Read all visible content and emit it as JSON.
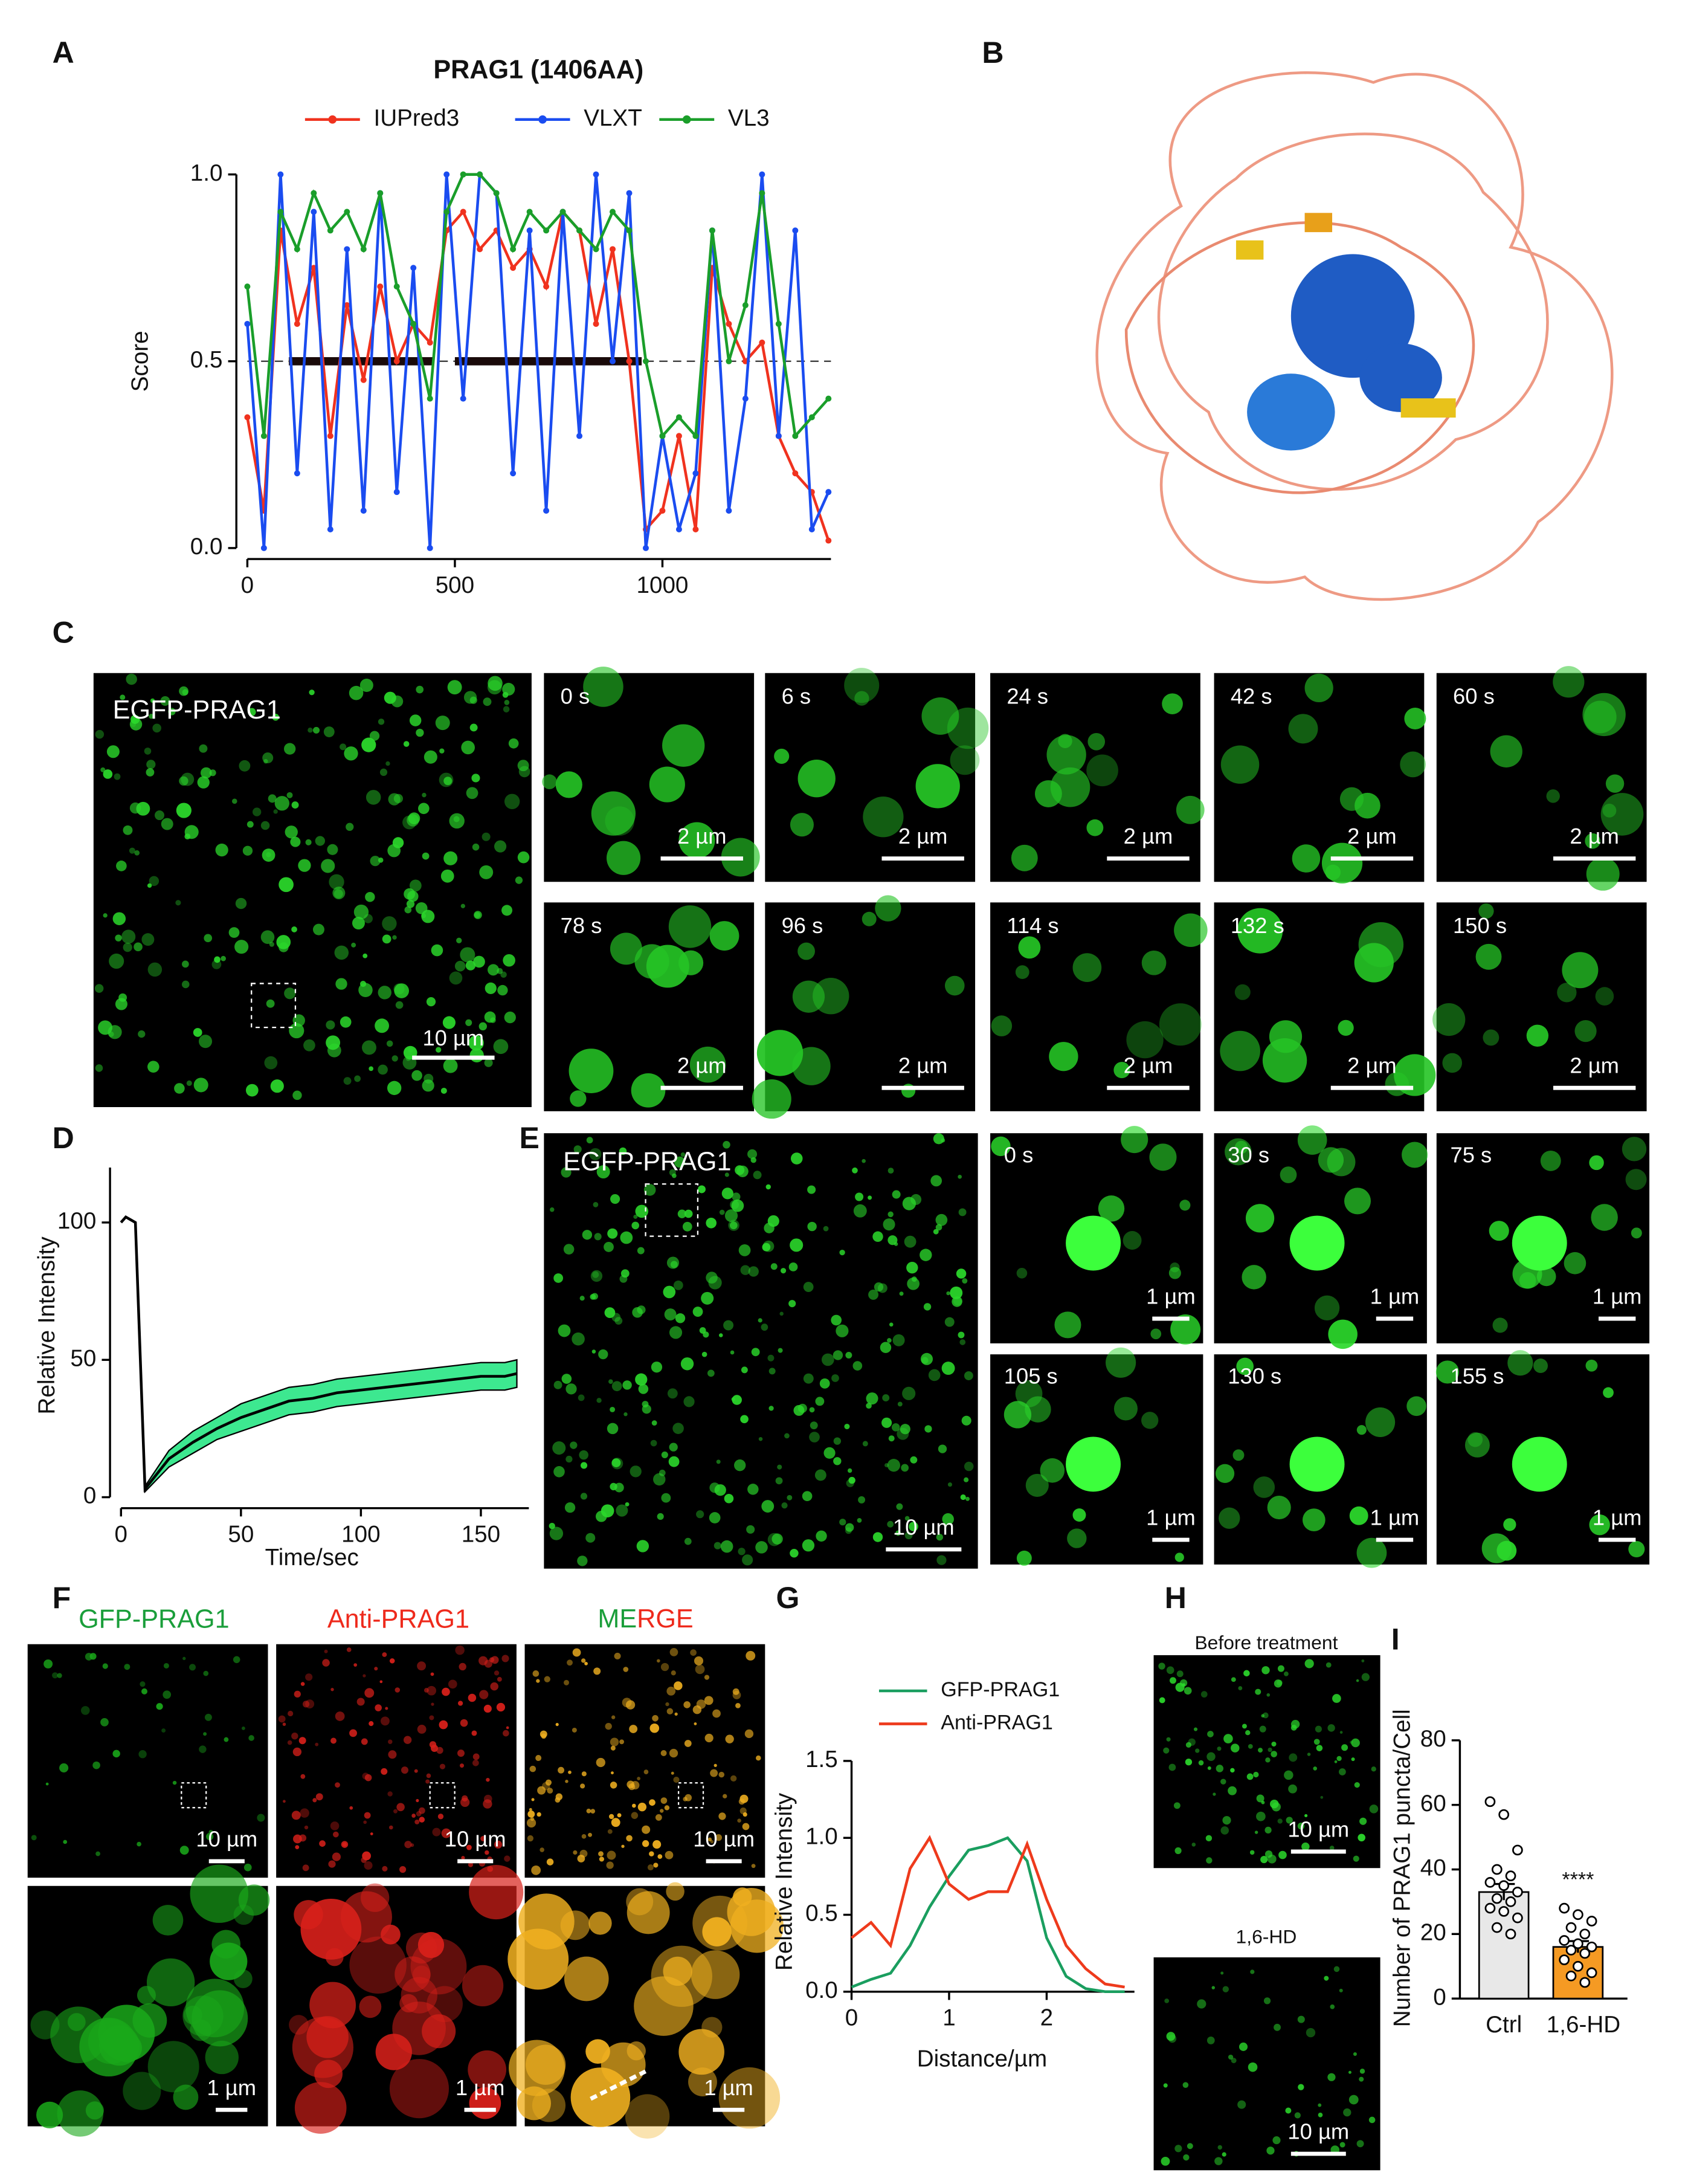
{
  "chart_data": [
    {
      "type": "line",
      "title": "PRAG1 (1406AA)",
      "ylabel": "Score",
      "markers": true,
      "x": [
        0,
        40,
        80,
        120,
        160,
        200,
        240,
        280,
        320,
        360,
        400,
        440,
        480,
        520,
        560,
        600,
        640,
        680,
        720,
        760,
        800,
        840,
        880,
        920,
        960,
        1000,
        1040,
        1080,
        1120,
        1160,
        1200,
        1240,
        1280,
        1320,
        1360,
        1400
      ],
      "series": [
        {
          "name": "IUPred3",
          "color": "#f0321e",
          "values": [
            0.35,
            0.1,
            0.85,
            0.6,
            0.75,
            0.3,
            0.65,
            0.45,
            0.7,
            0.5,
            0.6,
            0.55,
            0.85,
            0.9,
            0.8,
            0.85,
            0.75,
            0.8,
            0.7,
            0.9,
            0.85,
            0.6,
            0.8,
            0.5,
            0.05,
            0.1,
            0.3,
            0.05,
            0.75,
            0.6,
            0.5,
            0.55,
            0.3,
            0.2,
            0.15,
            0.02
          ]
        },
        {
          "name": "VLXT",
          "color": "#1a4cf0",
          "values": [
            0.6,
            0.0,
            1.0,
            0.2,
            0.9,
            0.05,
            0.8,
            0.1,
            0.95,
            0.15,
            0.75,
            0.0,
            1.0,
            0.4,
            1.0,
            0.95,
            0.2,
            0.85,
            0.1,
            0.9,
            0.3,
            1.0,
            0.5,
            0.95,
            0.0,
            0.3,
            0.05,
            0.2,
            0.85,
            0.1,
            0.4,
            1.0,
            0.3,
            0.85,
            0.05,
            0.15
          ]
        },
        {
          "name": "VL3",
          "color": "#1a9e2a",
          "values": [
            0.7,
            0.3,
            0.9,
            0.8,
            0.95,
            0.85,
            0.9,
            0.8,
            0.95,
            0.7,
            0.6,
            0.4,
            0.9,
            1.0,
            1.0,
            0.95,
            0.8,
            0.9,
            0.85,
            0.9,
            0.85,
            0.8,
            0.9,
            0.85,
            0.5,
            0.3,
            0.35,
            0.3,
            0.85,
            0.5,
            0.65,
            0.95,
            0.6,
            0.3,
            0.35,
            0.4
          ]
        }
      ],
      "hline": 0.5,
      "regions": [
        [
          100,
          450
        ],
        [
          500,
          950
        ]
      ],
      "xlim": [
        0,
        1406
      ],
      "xticks": [
        0,
        500,
        1000
      ],
      "ylim": [
        0,
        1
      ],
      "yticks": [
        {
          "value": 0,
          "label": "0.0"
        },
        {
          "value": 0.5,
          "label": "0.5"
        },
        {
          "value": 1,
          "label": "1.0"
        }
      ]
    },
    {
      "type": "line",
      "xlabel": "Time/sec",
      "ylabel": "Relative Intensity",
      "band_color": "#3de890",
      "x": [
        0,
        2,
        4,
        6,
        10,
        20,
        30,
        40,
        50,
        60,
        70,
        80,
        90,
        100,
        110,
        120,
        130,
        140,
        150,
        160,
        165
      ],
      "series": [
        {
          "color": "#000000",
          "values": [
            100,
            102,
            101,
            100,
            3,
            14,
            20,
            25,
            29,
            32,
            35,
            36,
            38,
            39,
            40,
            41,
            42,
            43,
            44,
            44,
            45
          ],
          "errors": [
            0,
            0,
            0,
            0,
            1,
            3,
            4,
            4,
            5,
            5,
            5,
            5,
            5,
            5,
            5,
            5,
            5,
            5,
            5,
            5,
            5
          ]
        }
      ],
      "xlim": [
        0,
        170
      ],
      "xticks": [
        0,
        50,
        100,
        150
      ],
      "ylim": [
        0,
        120
      ],
      "yticks": [
        0,
        50,
        100
      ]
    },
    {
      "type": "line",
      "xlabel": "Distance/µm",
      "ylabel": "Relative Intensity",
      "x": [
        0,
        0.2,
        0.4,
        0.6,
        0.8,
        1.0,
        1.2,
        1.4,
        1.6,
        1.8,
        2.0,
        2.2,
        2.4,
        2.6,
        2.8
      ],
      "series": [
        {
          "name": "GFP-PRAG1",
          "color": "#1a9e5f",
          "values": [
            0.03,
            0.08,
            0.12,
            0.3,
            0.55,
            0.75,
            0.92,
            0.95,
            1.0,
            0.85,
            0.35,
            0.1,
            0.02,
            0.0,
            0.0
          ]
        },
        {
          "name": "Anti-PRAG1",
          "color": "#ee3a1c",
          "values": [
            0.35,
            0.45,
            0.3,
            0.8,
            1.0,
            0.7,
            0.6,
            0.65,
            0.65,
            0.96,
            0.6,
            0.3,
            0.15,
            0.05,
            0.03
          ]
        }
      ],
      "xlim": [
        0,
        2.9
      ],
      "xticks": [
        0,
        1,
        2
      ],
      "ylim": [
        0,
        1.5
      ],
      "yticks": [
        {
          "value": 0,
          "label": "0.0"
        },
        {
          "value": 0.5,
          "label": "0.5"
        },
        {
          "value": 1,
          "label": "1.0"
        },
        {
          "value": 1.5,
          "label": "1.5"
        }
      ]
    },
    {
      "type": "bar",
      "ylabel": "Number of PRAG1 puncta/Cell",
      "annotation": "****",
      "categories": [
        "Ctrl",
        "1,6-HD"
      ],
      "values": [
        33,
        16
      ],
      "errors": [
        2.5,
        1.8
      ],
      "colors": [
        "#e8e8e8",
        "#f59a23"
      ],
      "points": [
        [
          61,
          57,
          46,
          40,
          38,
          36,
          35,
          33,
          31,
          30,
          28,
          27,
          25,
          22,
          20
        ],
        [
          28,
          26,
          24,
          22,
          20,
          18,
          17,
          16,
          15,
          14,
          12,
          10,
          8,
          7,
          5
        ]
      ],
      "ylim": [
        0,
        80
      ],
      "yticks": [
        0,
        20,
        40,
        60,
        80
      ]
    }
  ],
  "figure": {
    "letters": [
      "A",
      "B",
      "C",
      "D",
      "E",
      "F",
      "G",
      "H",
      "I"
    ],
    "C": {
      "image_label": "EGFP-PRAG1",
      "scale_bar": "10 µm",
      "tiles": [
        "0 s",
        "6 s",
        "24 s",
        "42 s",
        "60 s",
        "78 s",
        "96 s",
        "114 s",
        "132 s",
        "150 s"
      ],
      "tile_scale_bar": "2 µm"
    },
    "E": {
      "image_label": "EGFP-PRAG1",
      "scale_bar": "10 µm",
      "tiles": [
        "0 s",
        "30 s",
        "75 s",
        "105 s",
        "130 s",
        "155 s"
      ],
      "tile_scale_bar": "1 µm"
    },
    "F": {
      "headers": [
        "GFP-PRAG1",
        "Anti-PRAG1"
      ],
      "merge_header": [
        "ME",
        "RGE"
      ],
      "scale_bar": "10 µm",
      "zoom_scale_bar": "1 µm"
    },
    "H": {
      "labels": [
        "Before treatment",
        "1,6-HD"
      ],
      "scale_bar": "10 µm"
    }
  }
}
